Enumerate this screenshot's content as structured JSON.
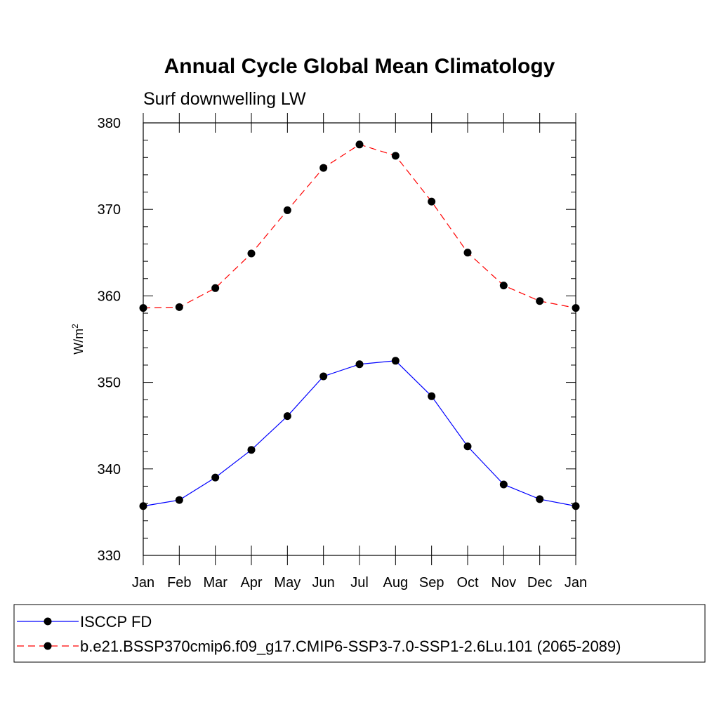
{
  "chart_data": {
    "type": "line",
    "title": "Annual Cycle Global Mean Climatology",
    "subtitle": "Surf downwelling LW",
    "ylabel": "W/m",
    "ylabel_superscript": "2",
    "xlabel": "",
    "categories": [
      "Jan",
      "Feb",
      "Mar",
      "Apr",
      "May",
      "Jun",
      "Jul",
      "Aug",
      "Sep",
      "Oct",
      "Nov",
      "Dec",
      "Jan"
    ],
    "ylim": [
      330,
      380
    ],
    "yticks": [
      330,
      340,
      350,
      360,
      370,
      380
    ],
    "ytick_labels": [
      "330",
      "340",
      "350",
      "360",
      "370",
      "380"
    ],
    "grid": false,
    "legend_position": "bottom",
    "series": [
      {
        "name": "ISCCP FD",
        "color": "#0000ff",
        "line_style": "solid",
        "marker": "filled-circle",
        "values": [
          335.7,
          336.4,
          339.0,
          342.2,
          346.1,
          350.7,
          352.1,
          352.5,
          348.4,
          342.6,
          338.2,
          336.5,
          335.7
        ]
      },
      {
        "name": "b.e21.BSSP370cmip6.f09_g17.CMIP6-SSP3-7.0-SSP1-2.6Lu.101 (2065-2089)",
        "color": "#ff0000",
        "line_style": "dashed",
        "marker": "filled-circle",
        "values": [
          358.6,
          358.7,
          360.9,
          364.9,
          369.9,
          374.8,
          377.5,
          376.2,
          370.9,
          365.0,
          361.2,
          359.4,
          358.6
        ]
      }
    ]
  }
}
